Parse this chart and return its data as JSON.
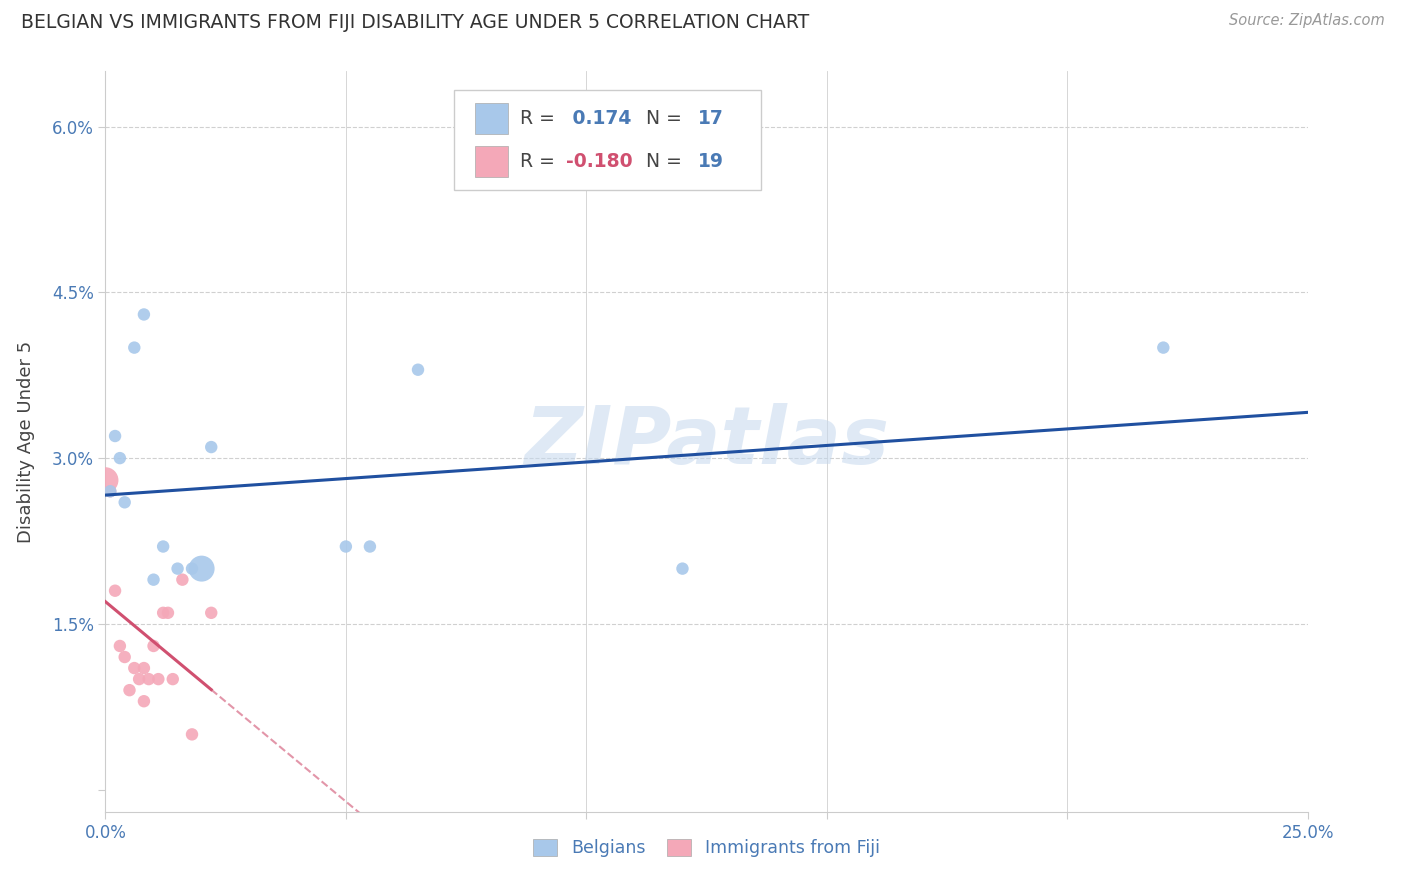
{
  "title": "BELGIAN VS IMMIGRANTS FROM FIJI DISABILITY AGE UNDER 5 CORRELATION CHART",
  "source": "Source: ZipAtlas.com",
  "ylabel": "Disability Age Under 5",
  "xlim": [
    0.0,
    0.25
  ],
  "ylim": [
    -0.002,
    0.065
  ],
  "xticks": [
    0.0,
    0.05,
    0.1,
    0.15,
    0.2,
    0.25
  ],
  "xtick_labels": [
    "0.0%",
    "",
    "",
    "",
    "",
    "25.0%"
  ],
  "yticks": [
    0.0,
    0.015,
    0.03,
    0.045,
    0.06
  ],
  "ytick_labels": [
    "",
    "1.5%",
    "3.0%",
    "4.5%",
    "6.0%"
  ],
  "belgian_color": "#a8c8ea",
  "fiji_color": "#f4a8b8",
  "belgian_line_color": "#2050a0",
  "fiji_line_color": "#d05070",
  "belgian_R": 0.174,
  "belgian_N": 17,
  "fiji_R": -0.18,
  "fiji_N": 19,
  "watermark": "ZIPatlas",
  "background_color": "#ffffff",
  "grid_color": "#d0d0d0",
  "belgians_x": [
    0.001,
    0.002,
    0.003,
    0.004,
    0.006,
    0.008,
    0.01,
    0.012,
    0.015,
    0.018,
    0.02,
    0.022,
    0.05,
    0.055,
    0.065,
    0.12,
    0.22
  ],
  "belgians_y": [
    0.027,
    0.032,
    0.03,
    0.026,
    0.04,
    0.043,
    0.019,
    0.022,
    0.02,
    0.02,
    0.02,
    0.031,
    0.022,
    0.022,
    0.038,
    0.02,
    0.04
  ],
  "belgians_size": [
    80,
    80,
    80,
    80,
    80,
    80,
    80,
    80,
    80,
    80,
    350,
    80,
    80,
    80,
    80,
    80,
    80
  ],
  "fiji_x": [
    0.0,
    0.001,
    0.002,
    0.003,
    0.004,
    0.005,
    0.006,
    0.007,
    0.008,
    0.008,
    0.009,
    0.01,
    0.011,
    0.012,
    0.013,
    0.014,
    0.016,
    0.018,
    0.022
  ],
  "fiji_y": [
    0.028,
    0.027,
    0.018,
    0.013,
    0.012,
    0.009,
    0.011,
    0.01,
    0.011,
    0.008,
    0.01,
    0.013,
    0.01,
    0.016,
    0.016,
    0.01,
    0.019,
    0.005,
    0.016
  ],
  "fiji_size": [
    350,
    80,
    80,
    80,
    80,
    80,
    80,
    80,
    80,
    80,
    80,
    80,
    80,
    80,
    80,
    80,
    80,
    80,
    80
  ]
}
